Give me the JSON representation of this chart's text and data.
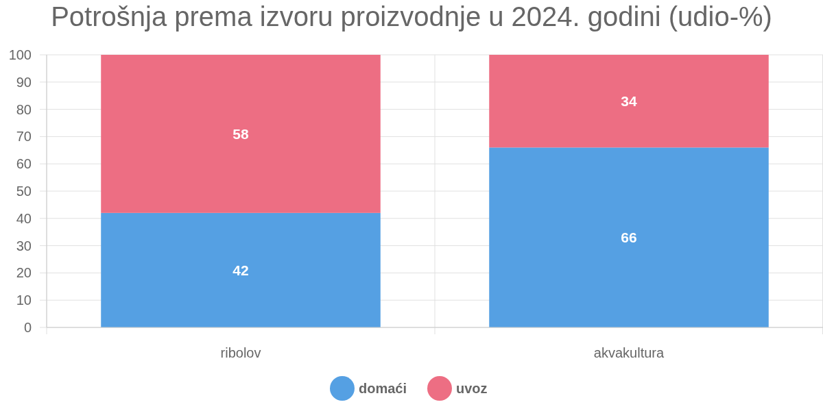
{
  "chart_data": {
    "type": "bar",
    "title": "Potrošnja prema izvoru proizvodnje u 2024. godini (udio-%)",
    "categories": [
      "ribolov",
      "akvakultura"
    ],
    "stacked": true,
    "series": [
      {
        "name": "domaći",
        "color": "#55a0e3",
        "values": [
          42,
          66
        ]
      },
      {
        "name": "uvoz",
        "color": "#ed6e83",
        "values": [
          58,
          34
        ]
      }
    ],
    "ylim": [
      0,
      100
    ],
    "yticks": [
      0,
      10,
      20,
      30,
      40,
      50,
      60,
      70,
      80,
      90,
      100
    ],
    "grid": true,
    "legend": "bottom",
    "data_labels": true
  }
}
